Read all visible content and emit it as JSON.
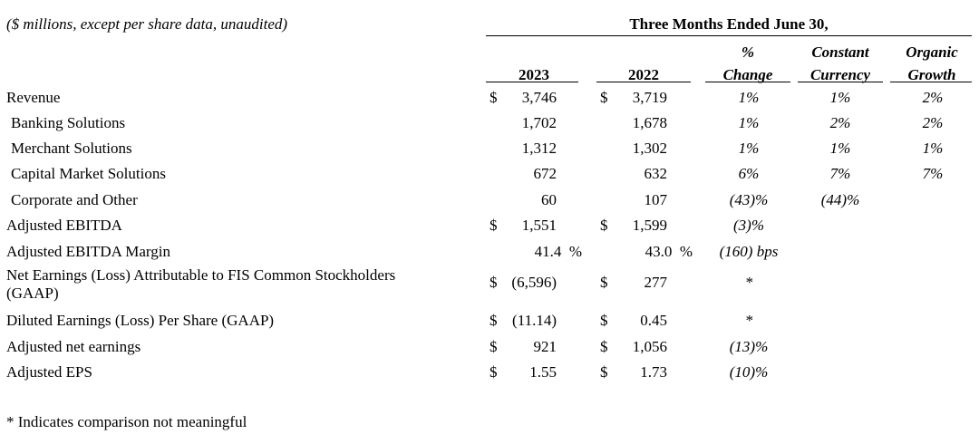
{
  "header": {
    "note": "($ millions, except per share data, unaudited)",
    "period": "Three Months Ended June 30,",
    "col_2023": "2023",
    "col_2022": "2022",
    "pct_change_line1": "%",
    "pct_change_line2": "Change",
    "constant_line1": "Constant",
    "constant_line2": "Currency",
    "organic_line1": "Organic",
    "organic_line2": "Growth"
  },
  "rows": [
    {
      "label": "Revenue",
      "cur23": "$",
      "v23": "3,746",
      "cur22": "$",
      "v22": "3,719",
      "chg": "1%",
      "cc": "1%",
      "org": "2%"
    },
    {
      "label": "Banking Solutions",
      "cur23": "",
      "v23": "1,702",
      "cur22": "",
      "v22": "1,678",
      "chg": "1%",
      "cc": "2%",
      "org": "2%"
    },
    {
      "label": "Merchant Solutions",
      "cur23": "",
      "v23": "1,312",
      "cur22": "",
      "v22": "1,302",
      "chg": "1%",
      "cc": "1%",
      "org": "1%"
    },
    {
      "label": "Capital Market Solutions",
      "cur23": "",
      "v23": "672",
      "cur22": "",
      "v22": "632",
      "chg": "6%",
      "cc": "7%",
      "org": "7%"
    },
    {
      "label": "Corporate and Other",
      "cur23": "",
      "v23": "60",
      "cur22": "",
      "v22": "107",
      "chg": "(43)%",
      "cc": "(44)%",
      "org": ""
    },
    {
      "label": "Adjusted EBITDA",
      "cur23": "$",
      "v23": "1,551",
      "cur22": "$",
      "v22": "1,599",
      "chg": "(3)%",
      "cc": "",
      "org": ""
    },
    {
      "label": "Adjusted EBITDA Margin",
      "cur23": "",
      "v23": "41.4  %",
      "cur22": "",
      "v22": "43.0  %",
      "chg": "(160) bps",
      "cc": "",
      "org": ""
    },
    {
      "label": "Net Earnings (Loss) Attributable to FIS Common Stockholders",
      "label2": "(GAAP)",
      "cur23": "$",
      "v23": "(6,596)",
      "cur22": "$",
      "v22": "277",
      "chg": "*",
      "cc": "",
      "org": ""
    },
    {
      "label": "Diluted Earnings (Loss) Per Share (GAAP)",
      "cur23": "$",
      "v23": "(11.14)",
      "cur22": "$",
      "v22": "0.45",
      "chg": "*",
      "cc": "",
      "org": ""
    },
    {
      "label": "Adjusted net earnings",
      "cur23": "$",
      "v23": "921",
      "cur22": "$",
      "v22": "1,056",
      "chg": "(13)%",
      "cc": "",
      "org": ""
    },
    {
      "label": "Adjusted EPS",
      "cur23": "$",
      "v23": "1.55",
      "cur22": "$",
      "v22": "1.73",
      "chg": "(10)%",
      "cc": "",
      "org": ""
    }
  ],
  "footnote": "* Indicates comparison not meaningful"
}
